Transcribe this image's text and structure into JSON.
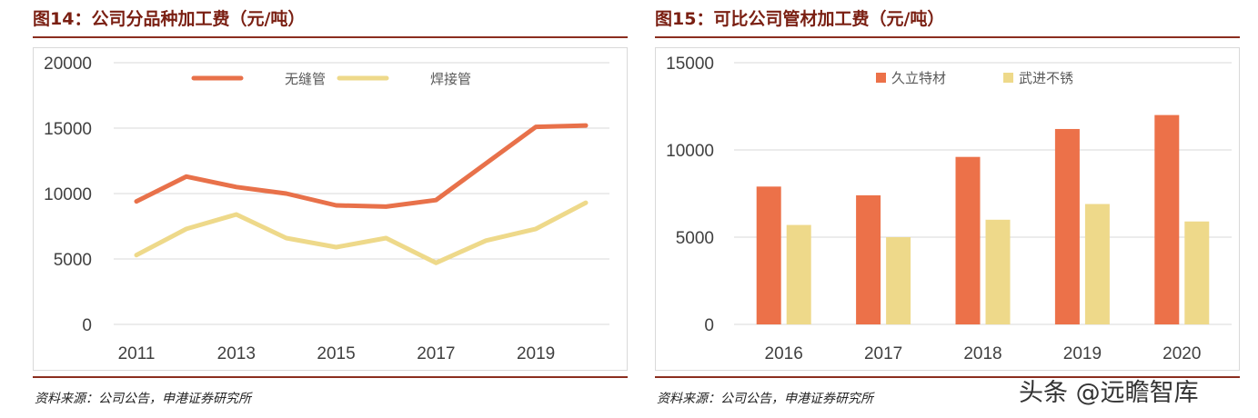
{
  "left": {
    "title": "图14：公司分品种加工费（元/吨）",
    "source": "资料来源：公司公告，申港证券研究所",
    "chart_data": {
      "type": "line",
      "x": [
        2011,
        2012,
        2013,
        2014,
        2015,
        2016,
        2017,
        2018,
        2019,
        2020
      ],
      "x_tick_labels": [
        "2011",
        "2013",
        "2015",
        "2017",
        "2019"
      ],
      "series": [
        {
          "name": "无缝管",
          "color": "#E8714A",
          "values": [
            9400,
            11300,
            10500,
            10000,
            9100,
            9000,
            9500,
            12300,
            15100,
            15200
          ]
        },
        {
          "name": "焊接管",
          "color": "#EED98A",
          "values": [
            5300,
            7300,
            8400,
            6600,
            5900,
            6600,
            4700,
            6400,
            7300,
            9300
          ]
        }
      ],
      "ylim": [
        0,
        20000
      ],
      "y_ticks": [
        "0",
        "5000",
        "10000",
        "15000",
        "20000"
      ],
      "y_tick_values": [
        0,
        5000,
        10000,
        15000,
        20000
      ],
      "grid": true,
      "legend_position": "top"
    }
  },
  "right": {
    "title": "图15：可比公司管材加工费（元/吨）",
    "source": "资料来源：公司公告，申港证券研究所",
    "chart_data": {
      "type": "bar",
      "categories": [
        "2016",
        "2017",
        "2018",
        "2019",
        "2020"
      ],
      "series": [
        {
          "name": "久立特材",
          "color": "#EC7149",
          "values": [
            7900,
            7400,
            9600,
            11200,
            12000
          ]
        },
        {
          "name": "武进不锈",
          "color": "#EED98A",
          "values": [
            5700,
            5000,
            6000,
            6900,
            5900
          ]
        }
      ],
      "ylim": [
        0,
        15000
      ],
      "y_ticks": [
        "0",
        "5000",
        "10000",
        "15000"
      ],
      "y_tick_values": [
        0,
        5000,
        10000,
        15000
      ],
      "grid": true,
      "legend_position": "top"
    }
  },
  "watermark": "头条 @远瞻智库"
}
